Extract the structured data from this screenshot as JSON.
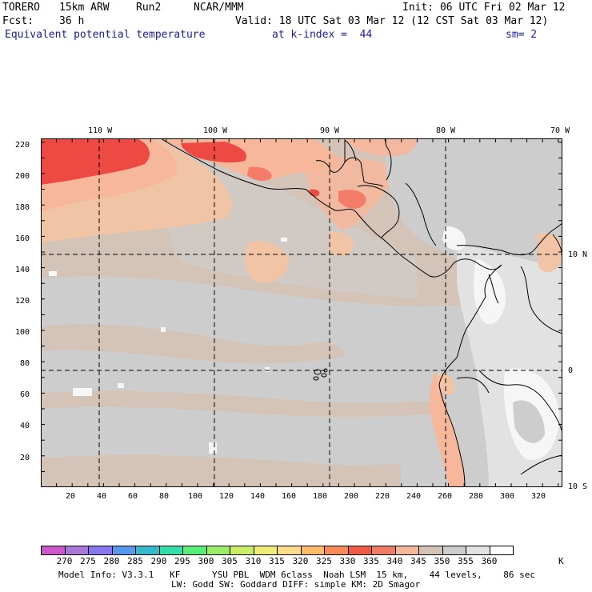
{
  "header": {
    "model": "TORERO",
    "resolution": "15km ARW",
    "run": "Run2",
    "org": "NCAR/MMM",
    "init": "Init: 06 UTC Fri 02 Mar 12",
    "fcst_label": "Fcst:",
    "fcst_value": "36 h",
    "valid": "Valid: 18 UTC Sat 03 Mar 12 (12 CST Sat 03 Mar 12)",
    "field": "Equivalent potential temperature",
    "level": "at k-index =  44",
    "smoothing": "sm= 2"
  },
  "map": {
    "lon_labels": [
      "110 W",
      "100 W",
      "90 W",
      "80 W",
      "70 W"
    ],
    "lat_labels": [
      "10 N",
      "0",
      "10 S"
    ],
    "x_ticks": [
      "20",
      "40",
      "60",
      "80",
      "100",
      "120",
      "140",
      "160",
      "180",
      "200",
      "220",
      "240",
      "260",
      "280",
      "300",
      "320"
    ],
    "y_ticks": [
      "20",
      "40",
      "60",
      "80",
      "100",
      "120",
      "140",
      "160",
      "180",
      "200",
      "220"
    ],
    "colors": {
      "background_345": "#d4c4b8",
      "gray_350": "#cdcdcd",
      "light_355": "#e2e2e2",
      "white_360": "#f6f6f6",
      "peach_340": "#f6b79b",
      "light_peach_335": "#f2c4a6",
      "salmon_330": "#f47d6a",
      "red_325": "#ee4a44",
      "gridline": "#000000",
      "coast": "#000000"
    }
  },
  "colorbar": {
    "labels": [
      "270",
      "275",
      "280",
      "285",
      "290",
      "295",
      "300",
      "305",
      "310",
      "315",
      "320",
      "325",
      "330",
      "335",
      "340",
      "345",
      "350",
      "355",
      "360"
    ],
    "unit": "K",
    "colors": [
      "#cc55cc",
      "#aa77dd",
      "#8877ee",
      "#5599ee",
      "#33bbcc",
      "#33ddaa",
      "#55ee77",
      "#99ee66",
      "#ccee66",
      "#eeee77",
      "#ffdd88",
      "#ffbb66",
      "#f98a5a",
      "#f05a45",
      "#f07a62",
      "#f6b79b",
      "#d4c4b8",
      "#cdcdcd",
      "#e2e2e2",
      "#ffffff"
    ]
  },
  "footer": {
    "line1": "Model Info: V3.3.1   KF      YSU PBL  WDM 6class  Noah LSM  15 km,    44 levels,    86 sec",
    "line2": "LW: Godd SW: Goddard DIFF: simple KM: 2D Smagor"
  }
}
